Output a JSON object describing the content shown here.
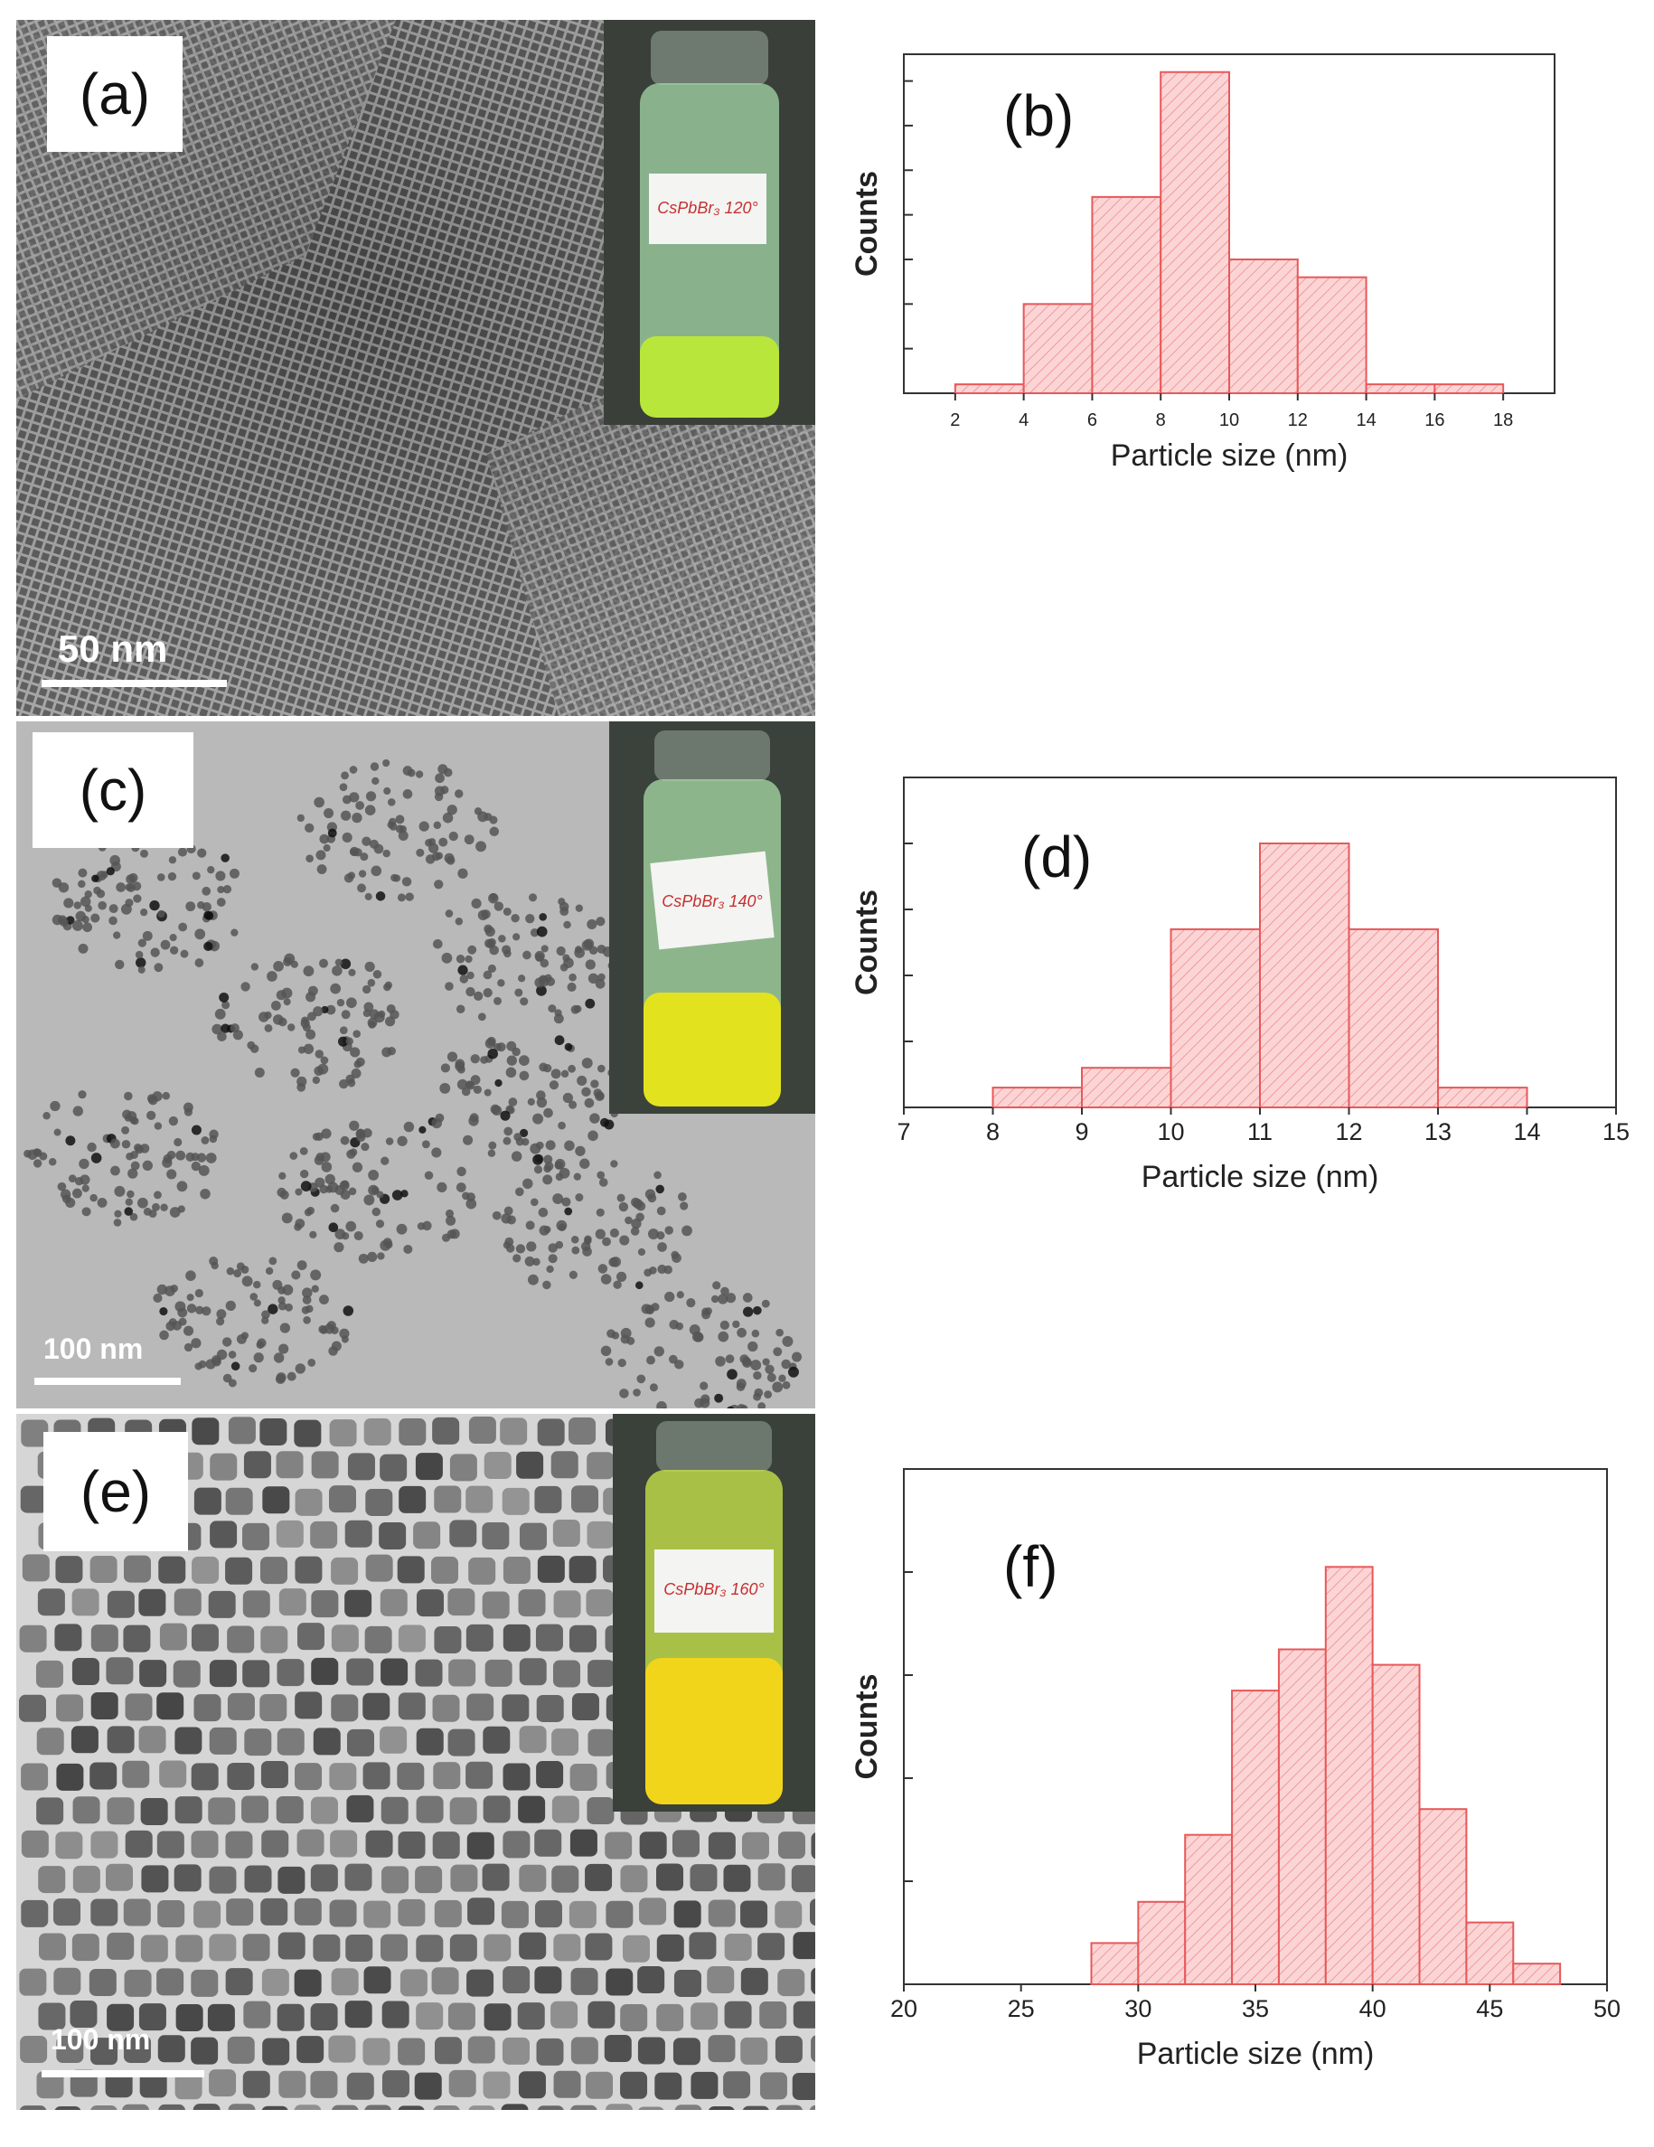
{
  "figure": {
    "panels": [
      {
        "label": "(a)",
        "scale_bar": "50 nm"
      },
      {
        "label": "(c)",
        "scale_bar": "100 nm"
      },
      {
        "label": "(e)",
        "scale_bar": "100 nm"
      }
    ],
    "vials": [
      {
        "label_text": "CsPbBr₃ 120°"
      },
      {
        "label_text": "CsPbBr₃ 140°"
      },
      {
        "label_text": "CsPbBr₃ 160°"
      }
    ]
  },
  "colors": {
    "bar_fill": "#fbd5d5",
    "bar_edge": "#e8585a",
    "hatch": "#f08a8c",
    "axis": "#333333",
    "liquid_120": "#b9e63a",
    "liquid_140": "#e2e21f",
    "liquid_160": "#f1d51a"
  },
  "chart_data": [
    {
      "type": "bar",
      "panel_label": "(b)",
      "xlabel": "Particle size (nm)",
      "ylabel": "Counts",
      "xlim": [
        0.5,
        19.5
      ],
      "xticks": [
        2,
        4,
        6,
        8,
        10,
        12,
        14,
        16,
        18
      ],
      "ylim": [
        0,
        38
      ],
      "yticks": [
        5,
        10,
        15,
        20,
        25,
        30,
        35
      ],
      "bins": [
        {
          "x0": 2,
          "x1": 4,
          "value": 1
        },
        {
          "x0": 4,
          "x1": 6,
          "value": 10
        },
        {
          "x0": 6,
          "x1": 8,
          "value": 22
        },
        {
          "x0": 8,
          "x1": 10,
          "value": 36
        },
        {
          "x0": 10,
          "x1": 12,
          "value": 15
        },
        {
          "x0": 12,
          "x1": 14,
          "value": 13
        },
        {
          "x0": 14,
          "x1": 16,
          "value": 1
        },
        {
          "x0": 16,
          "x1": 18,
          "value": 1
        }
      ]
    },
    {
      "type": "bar",
      "panel_label": "(d)",
      "xlabel": "Particle size (nm)",
      "ylabel": "Counts",
      "xlim": [
        7,
        15
      ],
      "xticks": [
        7,
        8,
        9,
        10,
        11,
        12,
        13,
        14,
        15
      ],
      "ylim": [
        0,
        50
      ],
      "yticks": [
        10,
        20,
        30,
        40
      ],
      "bins": [
        {
          "x0": 8,
          "x1": 9,
          "value": 3
        },
        {
          "x0": 9,
          "x1": 10,
          "value": 6
        },
        {
          "x0": 10,
          "x1": 11,
          "value": 27
        },
        {
          "x0": 11,
          "x1": 12,
          "value": 40
        },
        {
          "x0": 12,
          "x1": 13,
          "value": 27
        },
        {
          "x0": 13,
          "x1": 14,
          "value": 3
        }
      ]
    },
    {
      "type": "bar",
      "panel_label": "(f)",
      "xlabel": "Particle size (nm)",
      "ylabel": "Counts",
      "xlim": [
        20,
        50
      ],
      "xticks": [
        20,
        25,
        30,
        35,
        40,
        45,
        50
      ],
      "ylim": [
        0,
        100
      ],
      "yticks": [
        20,
        40,
        60,
        80
      ],
      "bins": [
        {
          "x0": 28,
          "x1": 30,
          "value": 8
        },
        {
          "x0": 30,
          "x1": 32,
          "value": 16
        },
        {
          "x0": 32,
          "x1": 34,
          "value": 29
        },
        {
          "x0": 34,
          "x1": 36,
          "value": 57
        },
        {
          "x0": 36,
          "x1": 38,
          "value": 65
        },
        {
          "x0": 38,
          "x1": 40,
          "value": 81
        },
        {
          "x0": 40,
          "x1": 42,
          "value": 62
        },
        {
          "x0": 42,
          "x1": 44,
          "value": 34
        },
        {
          "x0": 44,
          "x1": 46,
          "value": 12
        },
        {
          "x0": 46,
          "x1": 48,
          "value": 4
        }
      ]
    }
  ]
}
